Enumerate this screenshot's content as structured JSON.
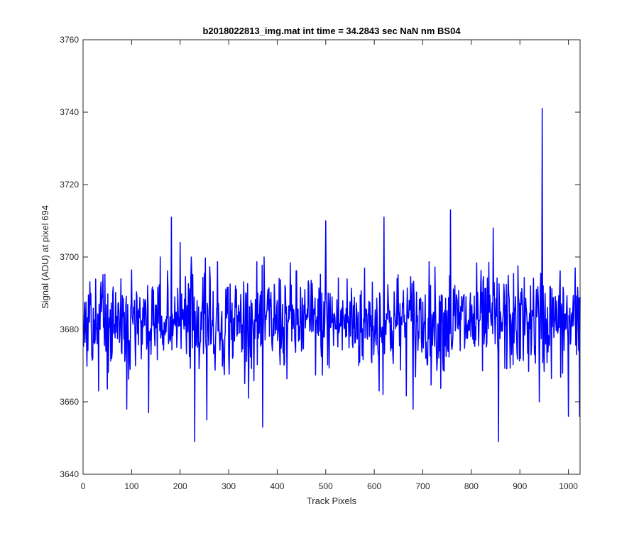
{
  "chart_data": {
    "type": "line",
    "title": "b2018022813_img.mat int time = 34.2843 sec  NaN nm BS04",
    "xlabel": "Track Pixels",
    "ylabel": "Signal (ADU) at pixel 694",
    "xlim": [
      0,
      1024
    ],
    "ylim": [
      3640,
      3760
    ],
    "xticks": [
      0,
      100,
      200,
      300,
      400,
      500,
      600,
      700,
      800,
      900,
      1000
    ],
    "yticks": [
      3640,
      3660,
      3680,
      3700,
      3720,
      3740,
      3760
    ],
    "grid": false,
    "series": [
      {
        "color": "#0000ff",
        "x_start": 1,
        "x_step": 1,
        "count": 1024,
        "mean": 3682,
        "noise_sd": 7,
        "notable_points": [
          {
            "x": 32,
            "y": 3663
          },
          {
            "x": 90,
            "y": 3658
          },
          {
            "x": 135,
            "y": 3657
          },
          {
            "x": 182,
            "y": 3711
          },
          {
            "x": 200,
            "y": 3704
          },
          {
            "x": 230,
            "y": 3649
          },
          {
            "x": 255,
            "y": 3655
          },
          {
            "x": 370,
            "y": 3653
          },
          {
            "x": 500,
            "y": 3710
          },
          {
            "x": 610,
            "y": 3663
          },
          {
            "x": 620,
            "y": 3711
          },
          {
            "x": 680,
            "y": 3658
          },
          {
            "x": 757,
            "y": 3713
          },
          {
            "x": 845,
            "y": 3708
          },
          {
            "x": 856,
            "y": 3649
          },
          {
            "x": 946,
            "y": 3741
          },
          {
            "x": 940,
            "y": 3660
          },
          {
            "x": 1000,
            "y": 3656
          },
          {
            "x": 1023,
            "y": 3656
          }
        ]
      }
    ]
  }
}
